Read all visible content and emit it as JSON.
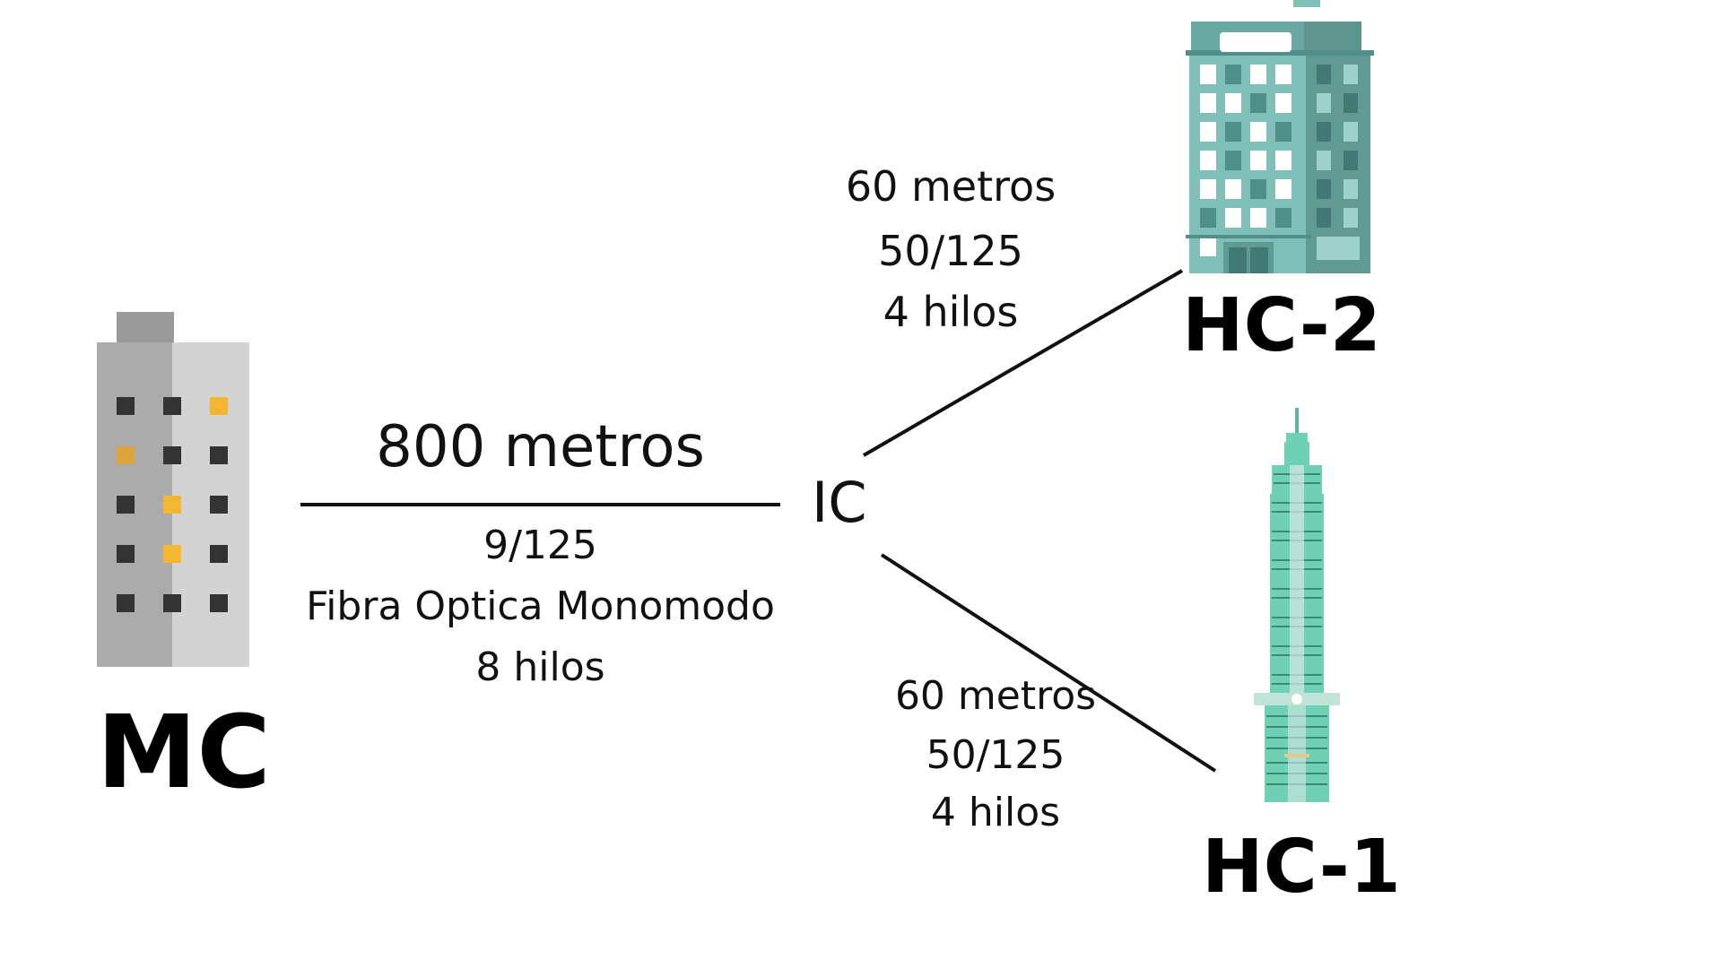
{
  "nodes": {
    "mc": {
      "label": "MC"
    },
    "ic": {
      "label": "IC"
    },
    "hc2": {
      "label": "HC-2"
    },
    "hc1": {
      "label": "HC-1"
    }
  },
  "links": {
    "mc_ic": {
      "distance": "800 metros",
      "fiber": "9/125",
      "type": "Fibra Optica Monomodo",
      "strands": "8 hilos"
    },
    "ic_hc2": {
      "distance": "60 metros",
      "fiber": "50/125",
      "strands": "4 hilos"
    },
    "ic_hc1": {
      "distance": "60 metros",
      "fiber": "50/125",
      "strands": "4 hilos"
    }
  },
  "colors": {
    "line": "#111111",
    "mc_building_dark": "#a9a9a9",
    "mc_building_light": "#d3d3d3",
    "window_dark": "#333333",
    "window_lit": "#f4b631",
    "teal_building": "#7fbfb8",
    "teal_dark": "#4f8f88",
    "tower_green": "#6fd0b3"
  },
  "icons": [
    "office-building-gray-icon",
    "office-building-teal-icon",
    "skyscraper-tower-icon"
  ]
}
